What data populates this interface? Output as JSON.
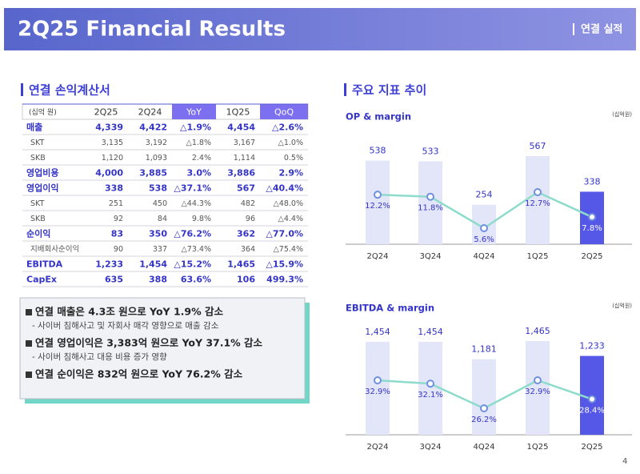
{
  "header": {
    "title": "2Q25 Financial Results",
    "section": "연결 실적"
  },
  "left_title": "연결 손익계산서",
  "right_title": "주요 지표 추이",
  "table": {
    "unit": "(십억 원)",
    "columns": [
      "2Q25",
      "2Q24",
      "YoY",
      "1Q25",
      "QoQ"
    ],
    "rows": [
      [
        "매출",
        "4,339",
        "4,422",
        "△1.9%",
        "4,454",
        "△2.6%"
      ],
      [
        "SKT",
        "3,135",
        "3,192",
        "△1.8%",
        "3,167",
        "△1.0%"
      ],
      [
        "SKB",
        "1,120",
        "1,093",
        "2.4%",
        "1,114",
        "0.5%"
      ],
      [
        "영업비용",
        "4,000",
        "3,885",
        "3.0%",
        "3,886",
        "2.9%"
      ],
      [
        "영업이익",
        "338",
        "538",
        "△37.1%",
        "567",
        "△40.4%"
      ],
      [
        "SKT",
        "251",
        "450",
        "△44.3%",
        "482",
        "△48.0%"
      ],
      [
        "SKB",
        "92",
        "84",
        "9.8%",
        "96",
        "△4.4%"
      ],
      [
        "순이익",
        "83",
        "350",
        "△76.2%",
        "362",
        "△77.0%"
      ],
      [
        "지배회사순이익",
        "90",
        "337",
        "△73.4%",
        "364",
        "△75.4%"
      ],
      [
        "EBITDA",
        "1,233",
        "1,454",
        "△15.2%",
        "1,465",
        "△15.9%"
      ],
      [
        "CapEx",
        "635",
        "388",
        "63.6%",
        "106",
        "499.3%"
      ]
    ]
  },
  "summary": [
    {
      "text": "연결 매출은 4.3조 원으로 YoY 1.9% 감소",
      "note": "- 사이버 침해사고 및 자회사 매각 영향으로 매출 감소"
    },
    {
      "text": "연결 영업이익은 3,383억 원으로 YoY 37.1% 감소",
      "note": "- 사이버 침해사고 대응 비용 증가 영향"
    },
    {
      "text": "연결 순이익은 832억 원으로 YoY 76.2% 감소"
    }
  ],
  "chart_data": [
    {
      "type": "combo",
      "title": "OP & margin",
      "unit": "(십억원)",
      "categories": [
        "2Q24",
        "3Q24",
        "4Q24",
        "1Q25",
        "2Q25"
      ],
      "series": [
        {
          "type": "bar",
          "color": "#e3e5f8",
          "highlight_color": "#5558e6",
          "values": [
            538,
            533,
            254,
            567,
            338
          ]
        },
        {
          "type": "line",
          "color": "#8ddccb",
          "values": [
            12.2,
            11.8,
            5.6,
            12.7,
            7.8
          ],
          "value_labels": [
            "12.2%",
            "11.8%",
            "5.6%",
            "12.7%",
            "7.8%"
          ]
        }
      ]
    },
    {
      "type": "combo",
      "title": "EBITDA & margin",
      "unit": "(십억원)",
      "categories": [
        "2Q24",
        "3Q24",
        "4Q24",
        "1Q25",
        "2Q25"
      ],
      "series": [
        {
          "type": "bar",
          "color": "#e3e5f8",
          "highlight_color": "#5558e6",
          "values": [
            1454,
            1454,
            1181,
            1465,
            1233
          ],
          "value_labels": [
            "1,454",
            "1,454",
            "1,181",
            "1,465",
            "1,233"
          ]
        },
        {
          "type": "line",
          "color": "#8ddccb",
          "values": [
            32.9,
            32.1,
            26.2,
            32.9,
            28.4
          ],
          "value_labels": [
            "32.9%",
            "32.1%",
            "26.2%",
            "32.9%",
            "28.4%"
          ]
        }
      ]
    }
  ],
  "page_number": "4"
}
